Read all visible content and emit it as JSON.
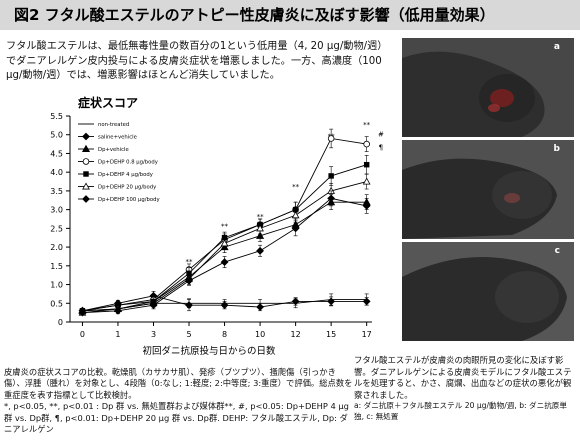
{
  "title": "図2 フタル酸エステルのアトピー性皮膚炎に及ぼす影響（低用量効果）",
  "intro": "フタル酸エステルは、最低無毒性量の数百分の1という低用量（4, 20 μg/動物/週）でダニアレルゲン皮内投与による皮膚炎症状を増悪しました。一方、高濃度（100 μg/動物/週）では、増悪影響はほとんど消失していました。",
  "caption_left": {
    "main": "皮膚炎の症状スコアの比較。乾燥肌（カサカサ肌）、発疹（ブツブツ）、掻爬傷（引っかき傷）、浮腫（腫れ）を対象とし、4段階（0:なし; 1:軽度; 2:中等度; 3:重度）で評価。総点数を重症度を表す指標として比較検討。",
    "stats": "*, p<0.05, **, p<0.01 : Dp 群 vs. 無処置群および媒体群**, #, p<0.05: Dp+DEHP 4 μg 群 vs. Dp群, ¶, p<0.01: Dp+DEHP 20 μg 群 vs. Dp群. DEHP: フタル酸エステル, Dp: ダニアレルゲン"
  },
  "caption_right": {
    "main": "フタル酸エステルが皮膚炎の肉眼所見の変化に及ぼす影響。ダニアレルゲンによる皮膚炎モデルにフタル酸エステルを処理すると、かさ、腐爛、出血などの症状の悪化が観察されました。",
    "legend": "a: ダニ抗原＋フタル酸エステル 20 μg/動物/週, b: ダニ抗原単独, c: 無処置"
  },
  "photos": [
    {
      "label": "a",
      "accent": "#b02a2a"
    },
    {
      "label": "b",
      "accent": "#a04848"
    },
    {
      "label": "c",
      "accent": "#555555"
    }
  ],
  "chart_data": {
    "type": "line",
    "title": "症状スコア",
    "xlabel": "初回ダニ抗原投与日からの日数",
    "ylabel": "",
    "x": [
      0,
      1,
      3,
      5,
      8,
      10,
      12,
      15,
      17
    ],
    "ylim": [
      0,
      5.5
    ],
    "yticks": [
      0,
      0.5,
      1.0,
      1.5,
      2.0,
      2.5,
      3.0,
      3.5,
      4.0,
      4.5,
      5.0,
      5.5
    ],
    "grid": false,
    "legend_position": "top-left",
    "annotations": [
      {
        "x": 5,
        "y": 1.55,
        "text": "**"
      },
      {
        "x": 8,
        "y": 2.5,
        "text": "**"
      },
      {
        "x": 10,
        "y": 2.75,
        "text": "**"
      },
      {
        "x": 12,
        "y": 3.55,
        "text": "**"
      },
      {
        "x": 15,
        "y": 4.9,
        "text": "**"
      },
      {
        "x": 17,
        "y": 5.2,
        "text": "**"
      },
      {
        "x": 17.8,
        "y": 4.95,
        "text": "#"
      },
      {
        "x": 17.8,
        "y": 4.6,
        "text": "¶"
      }
    ],
    "series": [
      {
        "name": "non-treated",
        "marker": "none",
        "values": [
          0.3,
          0.35,
          0.5,
          0.5,
          0.5,
          0.5,
          0.5,
          0.6,
          0.6
        ],
        "err": [
          0.05,
          0.08,
          0.1,
          0.12,
          0.1,
          0.1,
          0.12,
          0.15,
          0.15
        ]
      },
      {
        "name": "saline+vehicle",
        "marker": "diamond-filled",
        "values": [
          0.3,
          0.5,
          0.7,
          0.45,
          0.45,
          0.4,
          0.55,
          0.55,
          0.55
        ],
        "err": [
          0.05,
          0.08,
          0.12,
          0.15,
          0.1,
          0.1,
          0.1,
          0.12,
          0.1
        ]
      },
      {
        "name": "Dp+vehicle",
        "marker": "triangle-filled",
        "values": [
          0.3,
          0.35,
          0.55,
          1.2,
          2.0,
          2.3,
          2.6,
          3.2,
          3.2
        ],
        "err": [
          0.05,
          0.1,
          0.1,
          0.15,
          0.15,
          0.15,
          0.15,
          0.2,
          0.2
        ]
      },
      {
        "name": "Dp+DEHP 0.8 μg/body",
        "marker": "circle-open",
        "values": [
          0.3,
          0.45,
          0.6,
          1.4,
          2.2,
          2.6,
          3.0,
          4.9,
          4.75
        ],
        "err": [
          0.05,
          0.08,
          0.1,
          0.15,
          0.15,
          0.15,
          0.2,
          0.25,
          0.2
        ]
      },
      {
        "name": "Dp+DEHP 4 μg/body",
        "marker": "square-filled",
        "values": [
          0.3,
          0.45,
          0.55,
          1.3,
          2.25,
          2.6,
          3.0,
          3.9,
          4.2
        ],
        "err": [
          0.05,
          0.08,
          0.1,
          0.15,
          0.15,
          0.15,
          0.2,
          0.25,
          0.25
        ]
      },
      {
        "name": "Dp+DEHP 20 μg/body",
        "marker": "triangle-open",
        "values": [
          0.25,
          0.35,
          0.5,
          1.15,
          2.1,
          2.5,
          2.85,
          3.5,
          3.75
        ],
        "err": [
          0.05,
          0.08,
          0.1,
          0.15,
          0.15,
          0.15,
          0.2,
          0.2,
          0.2
        ]
      },
      {
        "name": "Dp+DEHP 100 μg/body",
        "marker": "diamond-filled",
        "values": [
          0.25,
          0.3,
          0.45,
          1.1,
          1.6,
          1.9,
          2.5,
          3.3,
          3.1
        ],
        "err": [
          0.05,
          0.08,
          0.1,
          0.12,
          0.15,
          0.15,
          0.2,
          0.2,
          0.2
        ]
      }
    ]
  }
}
